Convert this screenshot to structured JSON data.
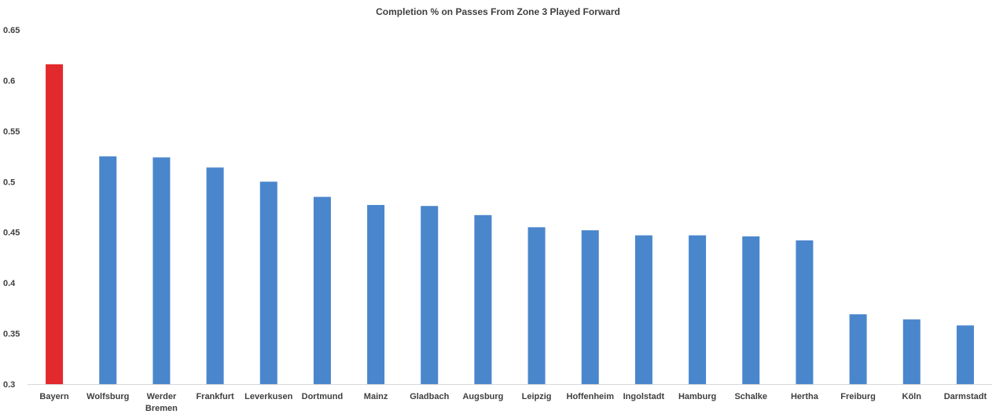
{
  "chart_data": {
    "type": "bar",
    "title": "Completion % on Passes From Zone 3 Played Forward",
    "xlabel": "",
    "ylabel": "",
    "ylim": [
      0.3,
      0.65
    ],
    "yticks": [
      "0.3",
      "0.35",
      "0.4",
      "0.45",
      "0.5",
      "0.55",
      "0.6",
      "0.65"
    ],
    "grid": false,
    "categories": [
      "Bayern",
      "Wolfsburg",
      "Werder Bremen",
      "Frankfurt",
      "Leverkusen",
      "Dortmund",
      "Mainz",
      "Gladbach",
      "Augsburg",
      "Leipzig",
      "Hoffenheim",
      "Ingolstadt",
      "Hamburg",
      "Schalke",
      "Hertha",
      "Freiburg",
      "Köln",
      "Darmstadt"
    ],
    "category_lines": [
      [
        "Bayern"
      ],
      [
        "Wolfsburg"
      ],
      [
        "Werder",
        "Bremen"
      ],
      [
        "Frankfurt"
      ],
      [
        "Leverkusen"
      ],
      [
        "Dortmund"
      ],
      [
        "Mainz"
      ],
      [
        "Gladbach"
      ],
      [
        "Augsburg"
      ],
      [
        "Leipzig"
      ],
      [
        "Hoffenheim"
      ],
      [
        "Ingolstadt"
      ],
      [
        "Hamburg"
      ],
      [
        "Schalke"
      ],
      [
        "Hertha"
      ],
      [
        "Freiburg"
      ],
      [
        "Köln"
      ],
      [
        "Darmstadt"
      ]
    ],
    "values": [
      0.616,
      0.525,
      0.524,
      0.514,
      0.5,
      0.485,
      0.477,
      0.476,
      0.467,
      0.455,
      0.452,
      0.447,
      0.447,
      0.446,
      0.442,
      0.369,
      0.364,
      0.358
    ],
    "highlight_index": 0,
    "colors": {
      "default": "#4a86cc",
      "highlight": "#e2292c",
      "axis": "#d9d9d9",
      "text": "#404040"
    }
  }
}
